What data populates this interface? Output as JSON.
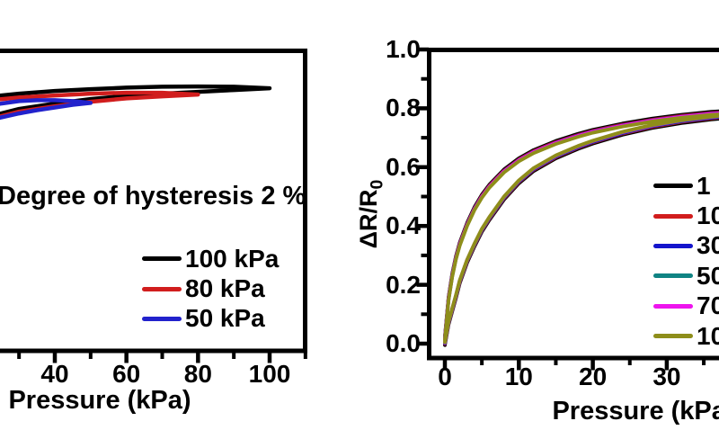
{
  "page": {
    "background": "#ffffff",
    "text_color": "#000000",
    "axis_color": "#000000"
  },
  "chart_data": [
    {
      "type": "line",
      "panel": "left",
      "title": "",
      "annotation": "Degree of hysteresis 2 %",
      "xlabel": "Pressure (kPa)",
      "ylabel": "",
      "x_axis": {
        "visible_range_kPa": [
          24.5,
          110
        ],
        "major_ticks": [
          40,
          60,
          80,
          100
        ],
        "major_tick_labels": [
          "40",
          "60",
          "80",
          "100"
        ],
        "minor_ticks": [
          30,
          50,
          70,
          90,
          110
        ]
      },
      "y_axis": {
        "visible": false,
        "normalized_range": [
          0,
          1
        ]
      },
      "grid": false,
      "legend": {
        "position": "inside-bottom-right"
      },
      "series": [
        {
          "name": "100 kPa",
          "color": "#000000",
          "max_pressure_kPa": 100,
          "load": [
            [
              20,
              0.775
            ],
            [
              30,
              0.805
            ],
            [
              40,
              0.823
            ],
            [
              50,
              0.838
            ],
            [
              60,
              0.849
            ],
            [
              70,
              0.856
            ],
            [
              80,
              0.862
            ],
            [
              90,
              0.868
            ],
            [
              100,
              0.874
            ]
          ],
          "unload": [
            [
              100,
              0.874
            ],
            [
              90,
              0.879
            ],
            [
              80,
              0.88
            ],
            [
              70,
              0.879
            ],
            [
              60,
              0.876
            ],
            [
              50,
              0.871
            ],
            [
              40,
              0.865
            ],
            [
              30,
              0.856
            ],
            [
              20,
              0.844
            ]
          ]
        },
        {
          "name": "80 kPa",
          "color": "#d11d1d",
          "max_pressure_kPa": 80,
          "load": [
            [
              20,
              0.766
            ],
            [
              30,
              0.796
            ],
            [
              40,
              0.814
            ],
            [
              50,
              0.829
            ],
            [
              60,
              0.84
            ],
            [
              70,
              0.847
            ],
            [
              80,
              0.853
            ]
          ],
          "unload": [
            [
              80,
              0.853
            ],
            [
              70,
              0.859
            ],
            [
              60,
              0.859
            ],
            [
              50,
              0.856
            ],
            [
              40,
              0.85
            ],
            [
              30,
              0.843
            ],
            [
              20,
              0.832
            ]
          ]
        },
        {
          "name": "50 kPa",
          "color": "#2222cc",
          "max_pressure_kPa": 50,
          "load": [
            [
              20,
              0.76
            ],
            [
              25,
              0.777
            ],
            [
              30,
              0.79
            ],
            [
              35,
              0.801
            ],
            [
              40,
              0.81
            ],
            [
              45,
              0.819
            ],
            [
              50,
              0.825
            ]
          ],
          "unload": [
            [
              50,
              0.825
            ],
            [
              45,
              0.831
            ],
            [
              40,
              0.834
            ],
            [
              35,
              0.834
            ],
            [
              30,
              0.831
            ],
            [
              25,
              0.823
            ],
            [
              20,
              0.811
            ]
          ]
        }
      ]
    },
    {
      "type": "line",
      "panel": "right",
      "title": "",
      "xlabel": "Pressure (kPa)",
      "ylabel_main": "ΔR/R",
      "ylabel_sub": "0",
      "x_axis": {
        "visible_range_kPa": [
          -2.2,
          37
        ],
        "major_ticks": [
          0,
          10,
          20,
          30
        ],
        "major_tick_labels": [
          "0",
          "10",
          "20",
          "30"
        ],
        "minor_ticks": [
          5,
          15,
          25,
          35
        ]
      },
      "y_axis": {
        "range": [
          -0.05,
          1.0
        ],
        "major_ticks": [
          0,
          0.2,
          0.4,
          0.6,
          0.8,
          1.0
        ],
        "major_tick_labels": [
          "0.0",
          "0.2",
          "0.4",
          "0.6",
          "0.8",
          "1.0"
        ],
        "minor_ticks": [
          0.1,
          0.3,
          0.5,
          0.7,
          0.9
        ]
      },
      "grid": false,
      "legend": {
        "position": "inside-right",
        "labels_clipped_at_edge": true
      },
      "base_loop": {
        "load": [
          [
            0,
            0.005
          ],
          [
            0.5,
            0.075
          ],
          [
            1,
            0.12
          ],
          [
            1.5,
            0.165
          ],
          [
            2,
            0.215
          ],
          [
            3,
            0.285
          ],
          [
            4,
            0.34
          ],
          [
            5,
            0.39
          ],
          [
            6,
            0.43
          ],
          [
            8,
            0.5
          ],
          [
            10,
            0.555
          ],
          [
            12,
            0.597
          ],
          [
            15,
            0.64
          ],
          [
            18,
            0.672
          ],
          [
            20,
            0.69
          ],
          [
            24,
            0.72
          ],
          [
            28,
            0.743
          ],
          [
            32,
            0.76
          ],
          [
            36,
            0.772
          ],
          [
            40,
            0.782
          ],
          [
            42,
            0.786
          ]
        ],
        "unload": [
          [
            42,
            0.786
          ],
          [
            40,
            0.784
          ],
          [
            36,
            0.778
          ],
          [
            32,
            0.768
          ],
          [
            28,
            0.755
          ],
          [
            24,
            0.738
          ],
          [
            20,
            0.717
          ],
          [
            18,
            0.703
          ],
          [
            15,
            0.679
          ],
          [
            12,
            0.648
          ],
          [
            10,
            0.62
          ],
          [
            8,
            0.582
          ],
          [
            6,
            0.53
          ],
          [
            5,
            0.496
          ],
          [
            4,
            0.454
          ],
          [
            3,
            0.4
          ],
          [
            2,
            0.333
          ],
          [
            1.5,
            0.287
          ],
          [
            1,
            0.228
          ],
          [
            0.5,
            0.148
          ],
          [
            0,
            0.013
          ]
        ]
      },
      "series": [
        {
          "label": "1",
          "color": "#000000",
          "dv_load": -0.01,
          "dv_unload": 0.01
        },
        {
          "label": "10",
          "color": "#d11d1d",
          "dv_load": -0.006,
          "dv_unload": 0.006
        },
        {
          "label": "30",
          "color": "#1414cc",
          "dv_load": -0.004,
          "dv_unload": 0.004
        },
        {
          "label": "50",
          "color": "#108383",
          "dv_load": -0.002,
          "dv_unload": 0.002
        },
        {
          "label": "70",
          "color": "#ee14ee",
          "dv_load": -0.001,
          "dv_unload": 0.003
        },
        {
          "label": "10",
          "color": "#8e8e1a",
          "dv_load": 0.0,
          "dv_unload": 0.0
        }
      ]
    }
  ]
}
